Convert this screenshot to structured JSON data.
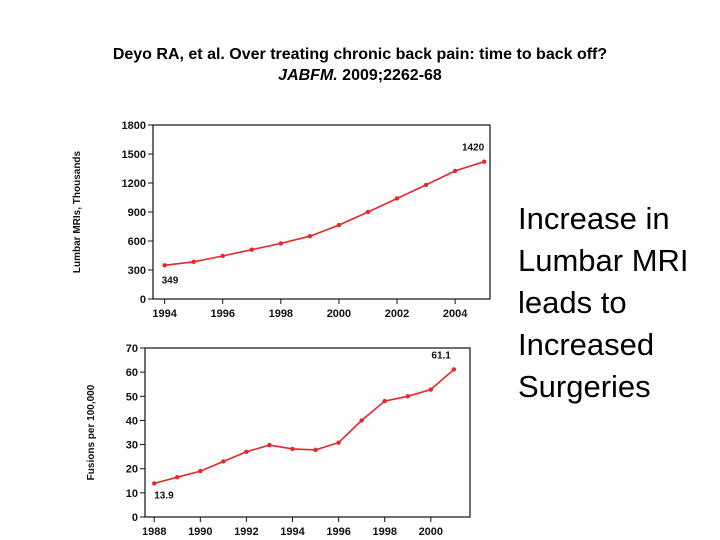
{
  "header": {
    "citation_line1": "Deyo RA, et al. Over treating chronic back pain: time to back off?",
    "journal": "JABFM.",
    "citation_rest": " 2009;2262-68"
  },
  "caption": {
    "lines": [
      "Increase in",
      "Lumbar MRI",
      "leads to",
      "Increased",
      "Surgeries"
    ]
  },
  "colors": {
    "line": "#e8262b",
    "axis": "#111111"
  },
  "chart_data": [
    {
      "type": "line",
      "title": "",
      "xlabel": "",
      "ylabel": "Lumbar MRIs, Thousands",
      "x": [
        1994,
        1995,
        1996,
        1997,
        1998,
        1999,
        2000,
        2001,
        2002,
        2003,
        2004,
        2005
      ],
      "series": [
        {
          "values": [
            349,
            385,
            445,
            510,
            575,
            650,
            765,
            900,
            1040,
            1180,
            1325,
            1420
          ]
        }
      ],
      "xticks": [
        1994,
        1996,
        1998,
        2000,
        2002,
        2004
      ],
      "yticks": [
        0,
        300,
        600,
        900,
        1200,
        1500,
        1800
      ],
      "xlim": [
        1993.6,
        2005.2
      ],
      "ylim": [
        0,
        1800
      ],
      "annotations": [
        {
          "x": 1994,
          "y": 349,
          "text": "349"
        },
        {
          "x": 2005,
          "y": 1420,
          "text": "1420"
        }
      ],
      "grid": false,
      "legend": "none"
    },
    {
      "type": "line",
      "title": "",
      "xlabel": "",
      "ylabel": "Fusions per 100,000",
      "x": [
        1988,
        1989,
        1990,
        1991,
        1992,
        1993,
        1994,
        1995,
        1996,
        1997,
        1998,
        1999,
        2000,
        2001
      ],
      "series": [
        {
          "values": [
            13.9,
            16.5,
            19.0,
            23.0,
            27.0,
            29.8,
            28.2,
            27.8,
            30.8,
            40.0,
            48.0,
            50.0,
            52.8,
            61.1
          ]
        }
      ],
      "xticks": [
        1988,
        1990,
        1992,
        1994,
        1996,
        1998,
        2000
      ],
      "yticks": [
        0,
        10,
        20,
        30,
        40,
        50,
        60,
        70
      ],
      "xlim": [
        1987.6,
        2001.7
      ],
      "ylim": [
        0,
        70
      ],
      "annotations": [
        {
          "x": 1988,
          "y": 13.9,
          "text": "13.9"
        },
        {
          "x": 2001,
          "y": 61.1,
          "text": "61.1"
        }
      ],
      "grid": false,
      "legend": "none"
    }
  ]
}
